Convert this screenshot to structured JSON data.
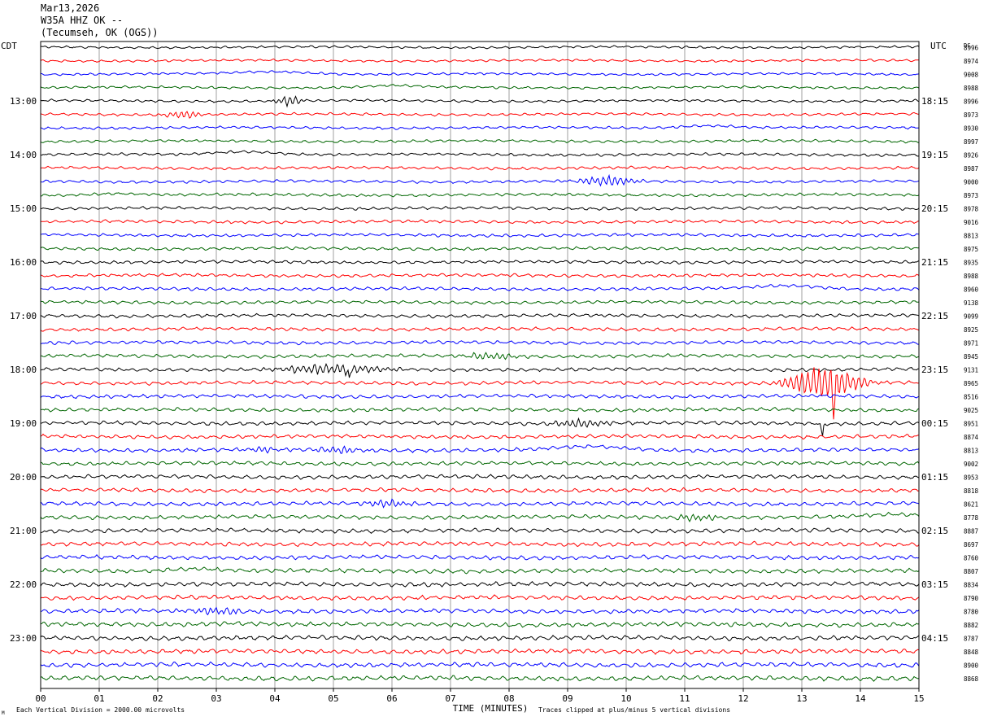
{
  "header": {
    "date": "Mar13,2026",
    "station": "W35A HHZ OK --",
    "location": "(Tecumseh, OK (OGS))"
  },
  "labels": {
    "left_tz": "CDT",
    "right_tz": "UTC",
    "dc": "DC",
    "x_axis": "TIME (MINUTES)",
    "scale_note": "Each Vertical Division = 2000.00 microvolts",
    "clip_note": "Traces clipped at plus/minus 5 vertical divisions",
    "corner_mark": "M"
  },
  "colors": {
    "trace_cycle": [
      "#000000",
      "#ff0000",
      "#0000ff",
      "#006600"
    ],
    "grid": "#888888"
  },
  "chart_data": {
    "type": "line",
    "title": "W35A HHZ OK --",
    "xlabel": "TIME (MINUTES)",
    "xlim": [
      0,
      15
    ],
    "x_ticks": [
      "00",
      "01",
      "02",
      "03",
      "04",
      "05",
      "06",
      "07",
      "08",
      "09",
      "10",
      "11",
      "12",
      "13",
      "14",
      "15"
    ],
    "row_count": 48,
    "minutes_per_row": 15,
    "left_hour_labels": [
      {
        "row": 4,
        "label": "13:00"
      },
      {
        "row": 8,
        "label": "14:00"
      },
      {
        "row": 12,
        "label": "15:00"
      },
      {
        "row": 16,
        "label": "16:00"
      },
      {
        "row": 20,
        "label": "17:00"
      },
      {
        "row": 24,
        "label": "18:00"
      },
      {
        "row": 28,
        "label": "19:00"
      },
      {
        "row": 32,
        "label": "20:00"
      },
      {
        "row": 36,
        "label": "21:00"
      },
      {
        "row": 40,
        "label": "22:00"
      },
      {
        "row": 44,
        "label": "23:00"
      }
    ],
    "right_hour_labels": [
      {
        "row": 4,
        "label": "18:15"
      },
      {
        "row": 8,
        "label": "19:15"
      },
      {
        "row": 12,
        "label": "20:15"
      },
      {
        "row": 16,
        "label": "21:15"
      },
      {
        "row": 20,
        "label": "22:15"
      },
      {
        "row": 24,
        "label": "23:15"
      },
      {
        "row": 28,
        "label": "00:15"
      },
      {
        "row": 32,
        "label": "01:15"
      },
      {
        "row": 36,
        "label": "02:15"
      },
      {
        "row": 40,
        "label": "03:15"
      },
      {
        "row": 44,
        "label": "04:15"
      }
    ],
    "dc_offsets": [
      "8996",
      "8974",
      "9008",
      "8988",
      "8996",
      "8973",
      "8930",
      "8997",
      "8926",
      "8987",
      "9000",
      "8973",
      "8978",
      "9016",
      "8813",
      "8975",
      "8935",
      "8988",
      "8960",
      "9138",
      "9099",
      "8925",
      "8971",
      "8945",
      "9131",
      "8965",
      "8516",
      "9025",
      "8951",
      "8874",
      "8813",
      "9002",
      "8953",
      "8818",
      "8621",
      "8778",
      "8887",
      "8697",
      "8760",
      "8807",
      "8834",
      "8790",
      "8780",
      "8882",
      "8787",
      "8848",
      "8900",
      "8868"
    ],
    "events": [
      {
        "row": 4,
        "minute": 4.25,
        "width": 0.35,
        "amp": 6,
        "kind": "burst"
      },
      {
        "row": 5,
        "minute": 2.45,
        "width": 0.45,
        "amp": 5,
        "kind": "burst"
      },
      {
        "row": 2,
        "minute": 4.0,
        "width": 1.4,
        "amp": 3,
        "kind": "swell"
      },
      {
        "row": 3,
        "minute": 6.0,
        "width": 0.9,
        "amp": 2,
        "kind": "swell"
      },
      {
        "row": 6,
        "minute": 11.4,
        "width": 1.0,
        "amp": 3,
        "kind": "swell"
      },
      {
        "row": 8,
        "minute": 3.5,
        "width": 1.2,
        "amp": 4,
        "kind": "swell"
      },
      {
        "row": 10,
        "minute": 9.7,
        "width": 0.7,
        "amp": 6,
        "kind": "burst"
      },
      {
        "row": 11,
        "minute": 1.3,
        "width": 0.9,
        "amp": 2,
        "kind": "swell"
      },
      {
        "row": 18,
        "minute": 12.8,
        "width": 1.2,
        "amp": 4,
        "kind": "swell"
      },
      {
        "row": 23,
        "minute": 7.7,
        "width": 0.7,
        "amp": 4,
        "kind": "burst"
      },
      {
        "row": 24,
        "minute": 5.0,
        "width": 1.4,
        "amp": 6,
        "kind": "burst"
      },
      {
        "row": 24,
        "minute": 5.27,
        "width": 0.05,
        "amp": 16,
        "kind": "spike"
      },
      {
        "row": 25,
        "minute": 13.4,
        "width": 0.9,
        "amp": 22,
        "kind": "burst"
      },
      {
        "row": 25,
        "minute": 13.55,
        "width": 0.06,
        "amp": 34,
        "kind": "spike"
      },
      {
        "row": 28,
        "minute": 9.2,
        "width": 0.7,
        "amp": 5,
        "kind": "burst"
      },
      {
        "row": 28,
        "minute": 13.35,
        "width": 0.05,
        "amp": 18,
        "kind": "spike"
      },
      {
        "row": 30,
        "minute": 9.4,
        "width": 1.2,
        "amp": 4,
        "kind": "swell"
      },
      {
        "row": 30,
        "minute": 5.1,
        "width": 0.6,
        "amp": 4,
        "kind": "burst"
      },
      {
        "row": 30,
        "minute": 3.8,
        "width": 0.5,
        "amp": 3,
        "kind": "burst"
      },
      {
        "row": 34,
        "minute": 5.9,
        "width": 0.6,
        "amp": 4,
        "kind": "burst"
      },
      {
        "row": 35,
        "minute": 11.2,
        "width": 0.6,
        "amp": 4,
        "kind": "burst"
      },
      {
        "row": 35,
        "minute": 14.6,
        "width": 1.0,
        "amp": 3,
        "kind": "swell"
      },
      {
        "row": 39,
        "minute": 2.6,
        "width": 1.0,
        "amp": 3,
        "kind": "swell"
      },
      {
        "row": 42,
        "minute": 3.0,
        "width": 0.7,
        "amp": 4,
        "kind": "burst"
      },
      {
        "row": 43,
        "minute": 3.3,
        "width": 1.2,
        "amp": 2,
        "kind": "swell"
      }
    ]
  }
}
